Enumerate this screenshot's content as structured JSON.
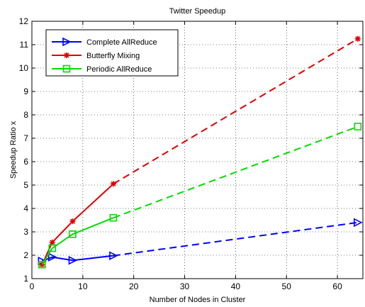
{
  "chart_data": {
    "type": "line",
    "title": "Twitter Speedup",
    "xlabel": "Number of Nodes in Cluster",
    "ylabel": "Speedup Ratio x",
    "xlim": [
      0,
      65
    ],
    "ylim": [
      1,
      12
    ],
    "xticks": [
      0,
      10,
      20,
      30,
      40,
      50,
      60
    ],
    "yticks": [
      1,
      2,
      3,
      4,
      5,
      6,
      7,
      8,
      9,
      10,
      11,
      12
    ],
    "grid": true,
    "legend_position": "top-left",
    "series": [
      {
        "name": "Complete AllReduce",
        "color": "#0000ff",
        "marker": "triangle-right",
        "x": [
          2,
          4,
          8,
          16,
          64
        ],
        "y": [
          1.75,
          1.92,
          1.78,
          1.98,
          3.4
        ],
        "solid_until_index": 3
      },
      {
        "name": "Butterfly Mixing",
        "color": "#e00000",
        "marker": "star",
        "x": [
          2,
          4,
          8,
          16,
          64
        ],
        "y": [
          1.6,
          2.55,
          3.45,
          5.05,
          11.25
        ],
        "solid_until_index": 3
      },
      {
        "name": "Periodic AllReduce",
        "color": "#00dd00",
        "marker": "square",
        "x": [
          2,
          4,
          8,
          16,
          64
        ],
        "y": [
          1.6,
          2.3,
          2.9,
          3.6,
          7.5
        ],
        "solid_until_index": 3
      }
    ]
  }
}
